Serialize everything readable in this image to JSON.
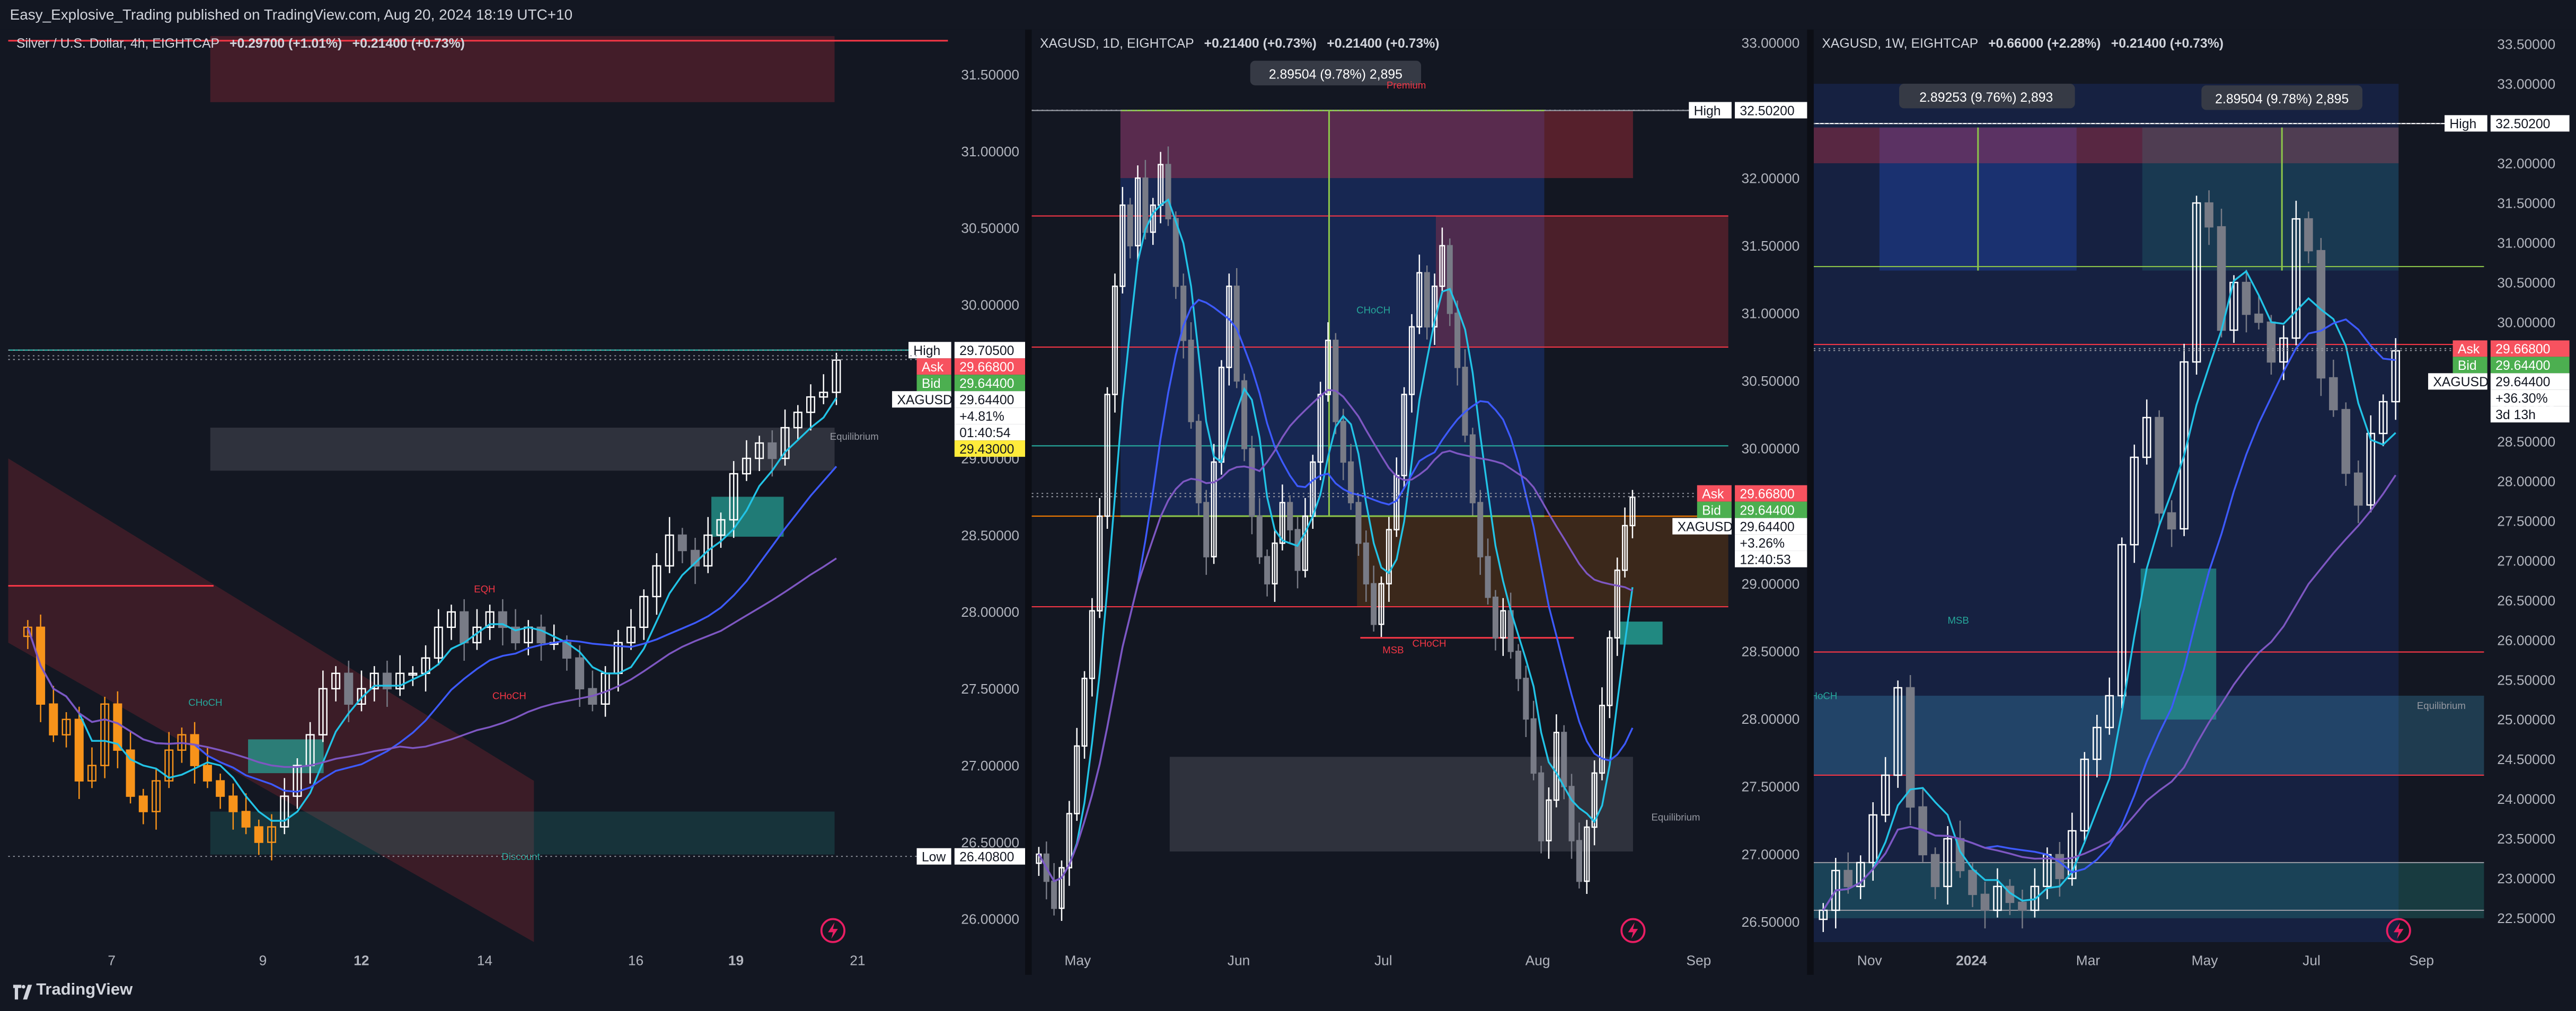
{
  "header": {
    "publisher": "Easy_Explosive_Trading published on TradingView.com, Aug 20, 2024 18:19 UTC+10"
  },
  "footer": {
    "brand": "TradingView"
  },
  "colors": {
    "bg": "#131722",
    "up": "#ffffff",
    "down": "#787b86",
    "up_orange": "#f7931a",
    "cyan": "#22c3e6",
    "blue": "#3d5afe",
    "purple": "#7e57c2",
    "red_zone": "#f23645",
    "green_zone": "#26a69a",
    "ask": "#f7525f",
    "bid": "#4caf50",
    "last": "#ffffff",
    "yellow": "#ffeb3b"
  },
  "panes": [
    {
      "legend": {
        "title": "Silver / U.S. Dollar, 4h, EIGHTCAP",
        "chg1": "+0.29700 (+1.01%)",
        "chg2": "+0.21400 (+0.73%)"
      },
      "y_axis": {
        "min": 25.85,
        "max": 31.75,
        "ticks": [
          "31.50000",
          "31.00000",
          "30.50000",
          "30.00000",
          "29.50000",
          "29.00000",
          "28.50000",
          "28.00000",
          "27.50000",
          "27.00000",
          "26.50000",
          "26.00000"
        ],
        "tick_values": [
          31.5,
          31.0,
          30.5,
          30.0,
          29.5,
          29.0,
          28.5,
          28.0,
          27.5,
          27.0,
          26.5,
          26.0
        ]
      },
      "x_axis": {
        "labels": [
          "7",
          "9",
          "12",
          "14",
          "16",
          "19",
          "21"
        ],
        "bold": [
          "12",
          "19"
        ]
      },
      "tags": [
        {
          "label": "High",
          "value": "29.70500",
          "price": 29.705,
          "bg": "#ffffff",
          "fg": "#131722",
          "label_bg": "#ffffff"
        },
        {
          "label": "Ask",
          "value": "29.66800",
          "price": 29.668,
          "bg": "#f7525f",
          "fg": "#ffffff",
          "label_bg": "#f7525f"
        },
        {
          "label": "Bid",
          "value": "29.64400",
          "price": 29.644,
          "bg": "#4caf50",
          "fg": "#ffffff",
          "label_bg": "#4caf50"
        },
        {
          "label": "XAGUSD",
          "value": "29.64400",
          "price": 29.644,
          "bg": "#ffffff",
          "fg": "#131722",
          "label_bg": "#ffffff",
          "extra": [
            "+4.81%",
            "01:40:54"
          ]
        },
        {
          "label": "",
          "value": "29.43000",
          "price": 29.43,
          "bg": "#ffeb3b",
          "fg": "#131722"
        },
        {
          "label": "Low",
          "value": "26.40800",
          "price": 26.408,
          "bg": "#ffffff",
          "fg": "#131722",
          "label_bg": "#ffffff"
        }
      ],
      "annotations": [
        "EQH",
        "CHoCH",
        "CHoCH",
        "Equilibrium",
        "Discount"
      ],
      "close": [
        27.9,
        27.4,
        27.2,
        27.3,
        26.9,
        27.0,
        27.4,
        27.1,
        26.8,
        26.7,
        26.9,
        27.1,
        27.2,
        27.0,
        26.9,
        26.8,
        26.7,
        26.6,
        26.5,
        26.6,
        26.8,
        27.0,
        27.2,
        27.5,
        27.6,
        27.4,
        27.5,
        27.6,
        27.5,
        27.6,
        27.6,
        27.7,
        27.9,
        28.0,
        27.8,
        27.9,
        28.0,
        27.9,
        27.8,
        27.9,
        27.8,
        27.8,
        27.7,
        27.5,
        27.4,
        27.6,
        27.8,
        27.9,
        28.1,
        28.3,
        28.5,
        28.4,
        28.3,
        28.5,
        28.6,
        28.9,
        29.0,
        29.1,
        29.0,
        29.2,
        29.3,
        29.4,
        29.43,
        29.64
      ]
    },
    {
      "legend": {
        "title": "XAGUSD, 1D, EIGHTCAP",
        "chg1": "+0.21400 (+0.73%)",
        "chg2": "+0.21400 (+0.73%)"
      },
      "y_axis": {
        "min": 26.35,
        "max": 33.05,
        "ticks": [
          "33.00000",
          "32.50000",
          "32.00000",
          "31.50000",
          "31.00000",
          "30.50000",
          "30.00000",
          "29.50000",
          "29.00000",
          "28.50000",
          "28.00000",
          "27.50000",
          "27.00000",
          "26.50000"
        ],
        "tick_values": [
          33.0,
          32.5,
          32.0,
          31.5,
          31.0,
          30.5,
          30.0,
          29.5,
          29.0,
          28.5,
          28.0,
          27.5,
          27.0,
          26.5
        ]
      },
      "x_axis": {
        "labels": [
          "May",
          "Jun",
          "Jul",
          "Aug",
          "Sep"
        ],
        "bold": []
      },
      "tags": [
        {
          "label": "High",
          "value": "32.50200",
          "price": 32.502,
          "bg": "#ffffff",
          "fg": "#131722",
          "label_bg": "#ffffff"
        },
        {
          "label": "Ask",
          "value": "29.66800",
          "price": 29.668,
          "bg": "#f7525f",
          "fg": "#ffffff",
          "label_bg": "#f7525f"
        },
        {
          "label": "Bid",
          "value": "29.64400",
          "price": 29.644,
          "bg": "#4caf50",
          "fg": "#ffffff",
          "label_bg": "#4caf50"
        },
        {
          "label": "XAGUSD",
          "value": "29.64400",
          "price": 29.644,
          "bg": "#ffffff",
          "fg": "#131722",
          "label_bg": "#ffffff",
          "extra": [
            "+3.26%",
            "12:40:53"
          ]
        }
      ],
      "measure": "2.89504 (9.78%) 2,895",
      "annotations": [
        "Premium",
        "CHoCH",
        "MSB",
        "CHoCH",
        "Equilibrium"
      ],
      "close": [
        27.0,
        26.8,
        26.6,
        26.9,
        27.3,
        27.8,
        28.3,
        28.8,
        29.5,
        30.4,
        31.2,
        31.8,
        31.5,
        32.0,
        31.6,
        31.8,
        32.1,
        31.7,
        31.2,
        30.8,
        30.2,
        29.6,
        29.2,
        29.9,
        30.6,
        31.2,
        30.5,
        30.0,
        29.5,
        29.2,
        29.0,
        29.3,
        29.6,
        29.4,
        29.1,
        29.5,
        29.9,
        30.4,
        30.8,
        30.2,
        29.9,
        29.6,
        29.3,
        29.0,
        28.7,
        29.0,
        29.4,
        29.8,
        30.4,
        30.9,
        31.3,
        30.9,
        31.2,
        31.5,
        31.0,
        30.6,
        30.1,
        29.6,
        29.2,
        28.9,
        28.6,
        28.8,
        28.5,
        28.3,
        28.0,
        27.6,
        27.1,
        27.4,
        27.9,
        27.5,
        27.1,
        26.8,
        27.2,
        27.6,
        28.1,
        28.6,
        29.1,
        29.43,
        29.64
      ]
    },
    {
      "legend": {
        "title": "XAGUSD, 1W, EIGHTCAP",
        "chg1": "+0.66000 (+2.28%)",
        "chg2": "+0.21400 (+0.73%)"
      },
      "y_axis": {
        "min": 22.2,
        "max": 33.6,
        "ticks": [
          "33.50000",
          "33.00000",
          "32.50000",
          "32.00000",
          "31.50000",
          "31.00000",
          "30.50000",
          "30.00000",
          "29.50000",
          "29.00000",
          "28.50000",
          "28.00000",
          "27.50000",
          "27.00000",
          "26.50000",
          "26.00000",
          "25.50000",
          "25.00000",
          "24.50000",
          "24.00000",
          "23.50000",
          "23.00000",
          "22.50000"
        ],
        "tick_values": [
          33.5,
          33.0,
          32.5,
          32.0,
          31.5,
          31.0,
          30.5,
          30.0,
          29.5,
          29.0,
          28.5,
          28.0,
          27.5,
          27.0,
          26.5,
          26.0,
          25.5,
          25.0,
          24.5,
          24.0,
          23.5,
          23.0,
          22.5
        ]
      },
      "x_axis": {
        "labels": [
          "Nov",
          "2024",
          "Mar",
          "May",
          "Jul",
          "Sep"
        ],
        "bold": [
          "2024"
        ]
      },
      "tags": [
        {
          "label": "High",
          "value": "32.50200",
          "price": 32.502,
          "bg": "#ffffff",
          "fg": "#131722",
          "label_bg": "#ffffff"
        },
        {
          "label": "Ask",
          "value": "29.66800",
          "price": 29.668,
          "bg": "#f7525f",
          "fg": "#ffffff",
          "label_bg": "#f7525f"
        },
        {
          "label": "Bid",
          "value": "29.64400",
          "price": 29.644,
          "bg": "#4caf50",
          "fg": "#ffffff",
          "label_bg": "#4caf50"
        },
        {
          "label": "XAGUSD",
          "value": "29.64400",
          "price": 29.644,
          "bg": "#ffffff",
          "fg": "#131722",
          "label_bg": "#ffffff",
          "extra": [
            "+36.30%",
            "3d 13h"
          ]
        }
      ],
      "measure1": "2.89253 (9.76%) 2,893",
      "measure2": "2.89504 (9.78%) 2,895",
      "annotations": [
        "MSB",
        "CHoCH",
        "Equilibrium"
      ],
      "close": [
        22.6,
        23.1,
        22.9,
        23.2,
        23.8,
        24.3,
        25.4,
        23.9,
        23.3,
        22.9,
        23.5,
        23.1,
        22.8,
        22.6,
        22.9,
        22.7,
        22.6,
        22.9,
        23.3,
        23.0,
        23.6,
        24.5,
        24.9,
        25.3,
        27.2,
        28.3,
        28.8,
        27.6,
        27.4,
        29.5,
        31.5,
        31.2,
        29.9,
        30.5,
        30.1,
        30.0,
        29.5,
        29.8,
        31.3,
        30.9,
        29.3,
        28.9,
        28.1,
        27.7,
        28.6,
        29.0,
        29.64
      ]
    }
  ]
}
